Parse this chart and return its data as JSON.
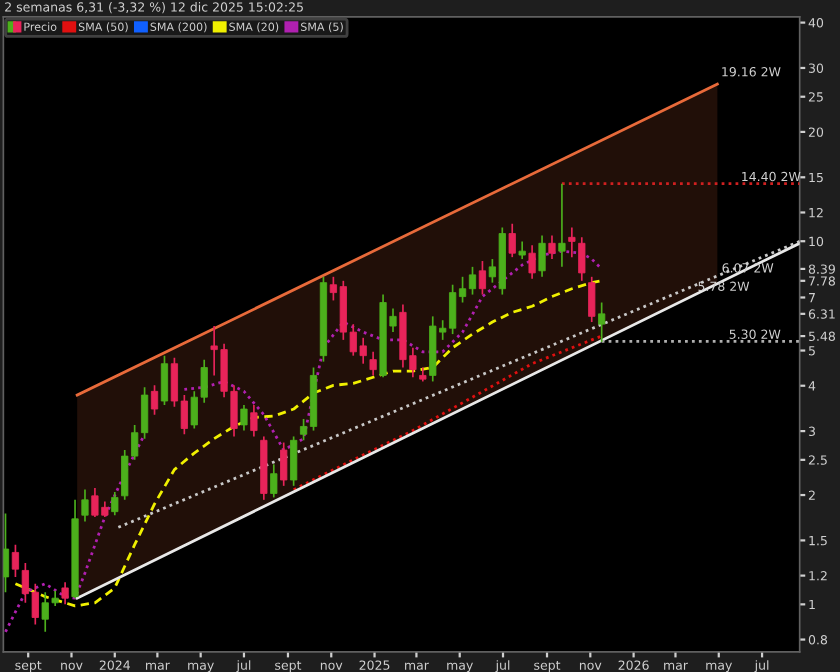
{
  "chart_data": {
    "type": "candlestick",
    "title": "2 semanas 6,31 (-3,32 %) 12 dic 2025 15:02:25",
    "log": "y",
    "grid": false,
    "legend": "top left",
    "xlim": [
      "2023-07-28",
      "2026-08-23"
    ],
    "ylim": [
      0.74,
      41.5
    ],
    "xticks": [
      {
        "value": "2023-09-01",
        "label": "sept"
      },
      {
        "value": "2023-11-01",
        "label": "nov"
      },
      {
        "value": "2024-01-01",
        "label": "2024"
      },
      {
        "value": "2024-03-01",
        "label": "mar"
      },
      {
        "value": "2024-05-01",
        "label": "may"
      },
      {
        "value": "2024-07-01",
        "label": "jul"
      },
      {
        "value": "2024-09-01",
        "label": "sept"
      },
      {
        "value": "2024-11-01",
        "label": "nov"
      },
      {
        "value": "2025-01-01",
        "label": "2025"
      },
      {
        "value": "2025-03-01",
        "label": "mar"
      },
      {
        "value": "2025-05-01",
        "label": "may"
      },
      {
        "value": "2025-07-01",
        "label": "jul"
      },
      {
        "value": "2025-09-01",
        "label": "sept"
      },
      {
        "value": "2025-11-01",
        "label": "nov"
      },
      {
        "value": "2026-01-01",
        "label": "2026"
      },
      {
        "value": "2026-03-01",
        "label": "mar"
      },
      {
        "value": "2026-05-01",
        "label": "may"
      },
      {
        "value": "2026-07-01",
        "label": "jul"
      }
    ],
    "yticks": [
      0.8,
      1,
      1.2,
      1.5,
      2,
      2.5,
      3,
      4,
      5,
      5.48,
      6.31,
      7,
      7.78,
      8.39,
      10,
      12,
      15,
      20,
      25,
      30,
      40
    ],
    "series": [
      {
        "name": "Precio",
        "x": [
          "2023-07-31",
          "2023-08-14",
          "2023-08-28",
          "2023-09-11",
          "2023-09-25",
          "2023-10-09",
          "2023-10-23",
          "2023-11-06",
          "2023-11-20",
          "2023-12-04",
          "2023-12-18",
          "2024-01-01",
          "2024-01-15",
          "2024-01-29",
          "2024-02-12",
          "2024-02-26",
          "2024-03-11",
          "2024-03-25",
          "2024-04-08",
          "2024-04-22",
          "2024-05-06",
          "2024-05-20",
          "2024-06-03",
          "2024-06-17",
          "2024-07-01",
          "2024-07-15",
          "2024-07-29",
          "2024-08-12",
          "2024-08-26",
          "2024-09-09",
          "2024-09-23",
          "2024-10-07",
          "2024-10-21",
          "2024-11-04",
          "2024-11-18",
          "2024-12-02",
          "2024-12-16",
          "2024-12-30",
          "2025-01-13",
          "2025-01-27",
          "2025-02-10",
          "2025-02-24",
          "2025-03-10",
          "2025-03-24",
          "2025-04-07",
          "2025-04-21",
          "2025-05-05",
          "2025-05-19",
          "2025-06-02",
          "2025-06-16",
          "2025-06-30",
          "2025-07-14",
          "2025-07-28",
          "2025-08-11",
          "2025-08-25",
          "2025-09-08",
          "2025-09-22",
          "2025-10-06",
          "2025-10-20",
          "2025-11-03",
          "2025-11-17"
        ],
        "ohlc": [
          [
            1.19,
            1.78,
            1.08,
            1.42
          ],
          [
            1.39,
            1.46,
            1.19,
            1.25
          ],
          [
            1.24,
            1.3,
            1.01,
            1.07
          ],
          [
            1.08,
            1.14,
            0.88,
            0.92
          ],
          [
            0.91,
            1.08,
            0.84,
            1.01
          ],
          [
            1.01,
            1.09,
            0.99,
            1.04
          ],
          [
            1.11,
            1.15,
            1.0,
            1.04
          ],
          [
            1.05,
            1.94,
            1.04,
            1.72
          ],
          [
            1.76,
            2.07,
            1.69,
            1.94
          ],
          [
            1.99,
            2.09,
            1.74,
            1.76
          ],
          [
            1.85,
            1.92,
            1.74,
            1.76
          ],
          [
            1.8,
            2.04,
            1.76,
            1.97
          ],
          [
            1.99,
            2.66,
            1.94,
            2.56
          ],
          [
            2.56,
            3.12,
            2.5,
            2.97
          ],
          [
            2.97,
            3.96,
            2.86,
            3.77
          ],
          [
            3.86,
            4.01,
            3.33,
            3.45
          ],
          [
            3.63,
            4.84,
            3.54,
            4.6
          ],
          [
            4.6,
            4.78,
            3.5,
            3.63
          ],
          [
            3.63,
            3.77,
            2.94,
            3.05
          ],
          [
            3.12,
            3.86,
            3.05,
            3.72
          ],
          [
            3.72,
            4.72,
            3.59,
            4.49
          ],
          [
            5.15,
            5.84,
            4.27,
            5.03
          ],
          [
            5.03,
            5.22,
            3.72,
            3.86
          ],
          [
            3.86,
            4.01,
            2.9,
            3.05
          ],
          [
            3.12,
            3.54,
            3.01,
            3.45
          ],
          [
            3.37,
            3.54,
            2.9,
            3.01
          ],
          [
            2.83,
            2.9,
            1.94,
            2.02
          ],
          [
            2.02,
            2.43,
            1.97,
            2.29
          ],
          [
            2.66,
            2.79,
            2.12,
            2.2
          ],
          [
            2.2,
            2.9,
            2.12,
            2.83
          ],
          [
            2.94,
            3.24,
            2.83,
            3.09
          ],
          [
            3.09,
            4.49,
            3.01,
            4.27
          ],
          [
            4.84,
            7.98,
            4.66,
            7.69
          ],
          [
            7.59,
            7.98,
            6.87,
            7.22
          ],
          [
            7.5,
            7.78,
            5.35,
            5.62
          ],
          [
            5.62,
            5.91,
            4.84,
            4.96
          ],
          [
            5.15,
            5.42,
            4.6,
            4.84
          ],
          [
            4.72,
            4.96,
            4.27,
            4.43
          ],
          [
            4.27,
            7.13,
            4.22,
            6.78
          ],
          [
            5.84,
            6.53,
            5.62,
            6.21
          ],
          [
            6.37,
            6.7,
            4.49,
            4.72
          ],
          [
            4.84,
            5.09,
            4.22,
            4.43
          ],
          [
            4.27,
            4.49,
            4.11,
            4.17
          ],
          [
            4.27,
            6.21,
            4.11,
            5.84
          ],
          [
            5.62,
            6.06,
            5.35,
            5.76
          ],
          [
            5.76,
            7.59,
            5.55,
            7.22
          ],
          [
            7.04,
            7.98,
            6.78,
            7.4
          ],
          [
            7.4,
            8.5,
            7.13,
            8.08
          ],
          [
            8.29,
            8.82,
            7.13,
            7.4
          ],
          [
            7.98,
            8.93,
            7.69,
            8.5
          ],
          [
            7.4,
            10.91,
            7.13,
            10.5
          ],
          [
            10.5,
            11.18,
            9.04,
            9.27
          ],
          [
            9.16,
            9.99,
            8.93,
            9.39
          ],
          [
            9.27,
            9.75,
            7.88,
            8.18
          ],
          [
            8.29,
            10.37,
            7.98,
            9.87
          ],
          [
            9.87,
            10.37,
            8.93,
            9.27
          ],
          [
            9.39,
            14.4,
            8.5,
            9.87
          ],
          [
            10.25,
            10.91,
            9.04,
            9.99
          ],
          [
            9.87,
            10.25,
            7.78,
            8.18
          ],
          [
            7.69,
            7.98,
            5.99,
            6.21
          ],
          [
            5.91,
            6.78,
            5.28,
            6.31
          ]
        ],
        "colors": [
          "#4cb01c",
          "#e8245a",
          "#e8245a",
          "#e8245a",
          "#4cb01c",
          "#4cb01c",
          "#e8245a",
          "#4cb01c",
          "#4cb01c",
          "#e8245a",
          "#e8245a",
          "#4cb01c",
          "#4cb01c",
          "#4cb01c",
          "#4cb01c",
          "#e8245a",
          "#4cb01c",
          "#e8245a",
          "#e8245a",
          "#4cb01c",
          "#4cb01c",
          "#e8245a",
          "#e8245a",
          "#e8245a",
          "#4cb01c",
          "#e8245a",
          "#e8245a",
          "#4cb01c",
          "#e8245a",
          "#4cb01c",
          "#4cb01c",
          "#4cb01c",
          "#4cb01c",
          "#e8245a",
          "#e8245a",
          "#e8245a",
          "#e8245a",
          "#e8245a",
          "#4cb01c",
          "#4cb01c",
          "#e8245a",
          "#e8245a",
          "#e8245a",
          "#4cb01c",
          "#4cb01c",
          "#4cb01c",
          "#4cb01c",
          "#4cb01c",
          "#e8245a",
          "#4cb01c",
          "#4cb01c",
          "#e8245a",
          "#4cb01c",
          "#e8245a",
          "#4cb01c",
          "#e8245a",
          "#4cb01c",
          "#e8245a",
          "#e8245a",
          "#e8245a",
          "#4cb01c"
        ]
      },
      {
        "type": "line",
        "name": "SMA (50)",
        "color": "#e01010",
        "line_style": "dotted",
        "x": [
          "2024-09-09",
          "2024-12-02",
          "2025-02-24",
          "2025-05-19",
          "2025-08-11",
          "2025-11-03",
          "2025-11-17"
        ],
        "values": [
          2.07,
          2.5,
          3.01,
          3.72,
          4.6,
          5.35,
          5.48
        ]
      },
      {
        "type": "line",
        "name": "SMA (200)",
        "color": "#1060ff",
        "line_style": "dotted"
      },
      {
        "type": "line",
        "name": "SMA (20)",
        "color": "#f0f000",
        "line_style": "dashed",
        "x": [
          "2023-08-14",
          "2023-09-25",
          "2023-11-06",
          "2023-12-04",
          "2024-01-01",
          "2024-01-29",
          "2024-02-26",
          "2024-03-25",
          "2024-04-22",
          "2024-05-20",
          "2024-06-17",
          "2024-07-15",
          "2024-08-12",
          "2024-09-09",
          "2024-10-07",
          "2024-11-04",
          "2024-12-02",
          "2024-12-30",
          "2025-01-27",
          "2025-02-24",
          "2025-03-24",
          "2025-04-21",
          "2025-05-19",
          "2025-06-16",
          "2025-07-14",
          "2025-08-11",
          "2025-09-08",
          "2025-10-06",
          "2025-11-03",
          "2025-11-17"
        ],
        "values": [
          1.14,
          1.05,
          0.99,
          1.01,
          1.11,
          1.46,
          1.89,
          2.35,
          2.61,
          2.86,
          3.09,
          3.27,
          3.3,
          3.45,
          3.82,
          4.01,
          4.06,
          4.22,
          4.39,
          4.39,
          4.49,
          5.09,
          5.55,
          5.99,
          6.37,
          6.62,
          7.04,
          7.4,
          7.69,
          7.78
        ]
      },
      {
        "type": "line",
        "name": "SMA (5)",
        "color": "#b020b0",
        "line_style": "dotted",
        "x": [
          "2023-07-31",
          "2023-08-28",
          "2023-09-25",
          "2023-10-23",
          "2023-11-06",
          "2023-11-20",
          "2023-12-18",
          "2024-01-15",
          "2024-02-12",
          "2024-03-11",
          "2024-04-08",
          "2024-05-06",
          "2024-06-03",
          "2024-07-01",
          "2024-07-29",
          "2024-08-26",
          "2024-09-23",
          "2024-10-21",
          "2024-11-18",
          "2024-12-16",
          "2025-01-13",
          "2025-02-10",
          "2025-03-10",
          "2025-04-07",
          "2025-05-05",
          "2025-06-02",
          "2025-06-30",
          "2025-07-28",
          "2025-08-25",
          "2025-09-22",
          "2025-10-20",
          "2025-11-03",
          "2025-11-17"
        ],
        "values": [
          0.84,
          1.08,
          1.14,
          1.05,
          1.04,
          1.22,
          1.74,
          2.29,
          2.94,
          null,
          3.91,
          3.96,
          4.11,
          3.86,
          3.33,
          2.66,
          2.86,
          5.09,
          5.99,
          5.62,
          5.35,
          5.35,
          4.96,
          4.96,
          5.62,
          7.04,
          7.78,
          8.6,
          9.16,
          9.39,
          9.27,
          8.93,
          8.39
        ]
      },
      {
        "type": "line",
        "color": "#e86a3a",
        "line_style": "solid",
        "x": [
          "2023-11-09",
          "2026-04-29"
        ],
        "values": [
          3.77,
          27.1
        ],
        "lower": [
          1.04,
          7.64
        ],
        "upper": [
          3.77,
          27.1
        ]
      },
      {
        "type": "line",
        "color": "#e8e8e8",
        "line_style": "solid",
        "x": [
          "2023-11-09",
          "2026-08-23"
        ],
        "values": [
          1.04,
          9.87
        ]
      },
      {
        "type": "line",
        "color": "#c8c8c8",
        "line_style": "dotted",
        "x": [
          "2024-01-06",
          "2026-08-23"
        ],
        "values": [
          1.63,
          9.99
        ]
      },
      {
        "type": "line",
        "color": "#d02020",
        "line_style": "dotted",
        "x": [
          "2025-09-22",
          "2026-08-23"
        ],
        "values": [
          14.4,
          14.4
        ]
      },
      {
        "type": "line",
        "color": "#b0b0b0",
        "line_style": "dotted",
        "x": [
          "2025-11-17",
          "2026-08-23"
        ],
        "values": [
          5.3,
          5.3
        ]
      }
    ],
    "annotations": [
      {
        "text": "19.16 2W",
        "x": "2026-05-04",
        "y": 28
      },
      {
        "text": "14.40 2W",
        "x": "2026-06-01",
        "y": 14.4
      },
      {
        "text": "6.07 2W",
        "x": "2026-05-05",
        "y": 8.07
      },
      {
        "text": "5.78 2W",
        "x": "2026-04-01",
        "y": 7.18
      },
      {
        "text": "5.30 2W",
        "x": "2026-05-15",
        "y": 5.3
      }
    ]
  }
}
